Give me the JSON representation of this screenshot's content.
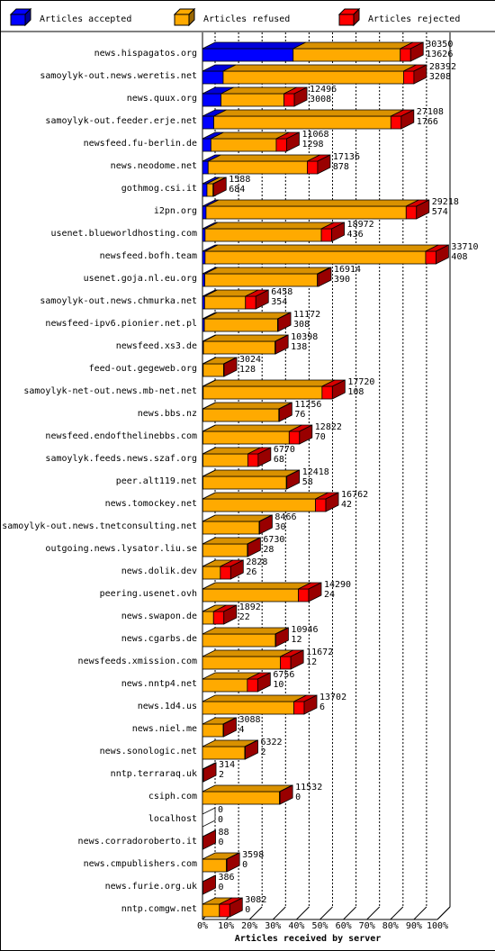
{
  "chart_data": {
    "type": "bar",
    "orientation": "horizontal",
    "stacked": true,
    "xlabel": "Articles received by server",
    "xlim": [
      0,
      100
    ],
    "x_unit": "%",
    "x_ticks": [
      "0%",
      "10%",
      "20%",
      "30%",
      "40%",
      "50%",
      "60%",
      "70%",
      "80%",
      "90%",
      "100%"
    ],
    "grid": true,
    "legend_position": "top",
    "series": [
      {
        "name": "Articles accepted",
        "color": "#0000ff"
      },
      {
        "name": "Articles refused",
        "color": "#ffaa00"
      },
      {
        "name": "Articles rejected",
        "color": "#ff0000"
      }
    ],
    "categories": [
      "news.hispagatos.org",
      "samoylyk-out.news.weretis.net",
      "news.quux.org",
      "samoylyk-out.feeder.erje.net",
      "newsfeed.fu-berlin.de",
      "news.neodome.net",
      "gothmog.csi.it",
      "i2pn.org",
      "usenet.blueworldhosting.com",
      "newsfeed.bofh.team",
      "usenet.goja.nl.eu.org",
      "samoylyk-out.news.chmurka.net",
      "newsfeed-ipv6.pionier.net.pl",
      "newsfeed.xs3.de",
      "feed-out.gegeweb.org",
      "samoylyk-net-out.news.mb-net.net",
      "news.bbs.nz",
      "newsfeed.endofthelinebbs.com",
      "samoylyk.feeds.news.szaf.org",
      "peer.alt119.net",
      "news.tomockey.net",
      "samoylyk-out.news.tnetconsulting.net",
      "outgoing.news.lysator.liu.se",
      "news.dolik.dev",
      "peering.usenet.ovh",
      "news.swapon.de",
      "news.cgarbs.de",
      "newsfeeds.xmission.com",
      "news.nntp4.net",
      "news.1d4.us",
      "news.niel.me",
      "news.sonologic.net",
      "nntp.terraraq.uk",
      "csiph.com",
      "localhost",
      "news.corradoroberto.it",
      "news.cmpublishers.com",
      "news.furie.org.uk",
      "nntp.comgw.net"
    ],
    "offered": [
      30350,
      28392,
      12496,
      27108,
      11068,
      17136,
      1588,
      29218,
      18972,
      33710,
      16914,
      6458,
      11172,
      10398,
      3024,
      17720,
      11256,
      12822,
      6770,
      12418,
      16762,
      8466,
      6730,
      2828,
      14290,
      1892,
      10946,
      11672,
      6756,
      13702,
      3088,
      6322,
      314,
      11532,
      0,
      88,
      3598,
      386,
      3082
    ],
    "accepted": [
      13626,
      3208,
      3008,
      1766,
      1298,
      878,
      684,
      574,
      436,
      408,
      390,
      354,
      308,
      138,
      128,
      108,
      76,
      70,
      68,
      58,
      42,
      30,
      28,
      26,
      24,
      22,
      12,
      12,
      10,
      6,
      4,
      2,
      2,
      0,
      0,
      0,
      0,
      0,
      0
    ],
    "accepted_pct": [
      38.6,
      8.8,
      7.9,
      4.8,
      3.6,
      2.4,
      1.9,
      1.5,
      1.1,
      1.1,
      1.0,
      0.9,
      0.8,
      0.4,
      0.3,
      0.3,
      0.2,
      0.2,
      0.2,
      0.2,
      0.1,
      0.1,
      0.1,
      0.1,
      0.1,
      0.1,
      0,
      0,
      0,
      0,
      0,
      0,
      0,
      0,
      0,
      0,
      0,
      0,
      0
    ],
    "refused_pct": [
      45.6,
      76.8,
      26.8,
      75.4,
      27.8,
      42.2,
      2.6,
      85.2,
      49.5,
      93.9,
      47.9,
      17.4,
      31.2,
      30.5,
      8.7,
      50.6,
      32.3,
      36.7,
      19.1,
      35.5,
      48.0,
      24.0,
      19.0,
      7.5,
      40.7,
      4.6,
      31.0,
      33.2,
      19.1,
      38.9,
      8.8,
      18.0,
      0.2,
      32.8,
      0,
      0,
      10.2,
      0,
      7.2
    ],
    "rejected_pct": [
      4.4,
      4.4,
      4.4,
      4.4,
      4.4,
      4.4,
      0.2,
      4.4,
      4.4,
      4.4,
      0.5,
      4.4,
      0.2,
      0.2,
      0.2,
      4.4,
      0.2,
      4.4,
      4.4,
      0.2,
      4.4,
      0.2,
      0.2,
      4.4,
      4.4,
      4.4,
      0.2,
      4.4,
      4.4,
      4.4,
      0.2,
      0.2,
      0.2,
      0.2,
      0,
      0.2,
      0.2,
      0.2,
      4.4
    ]
  }
}
